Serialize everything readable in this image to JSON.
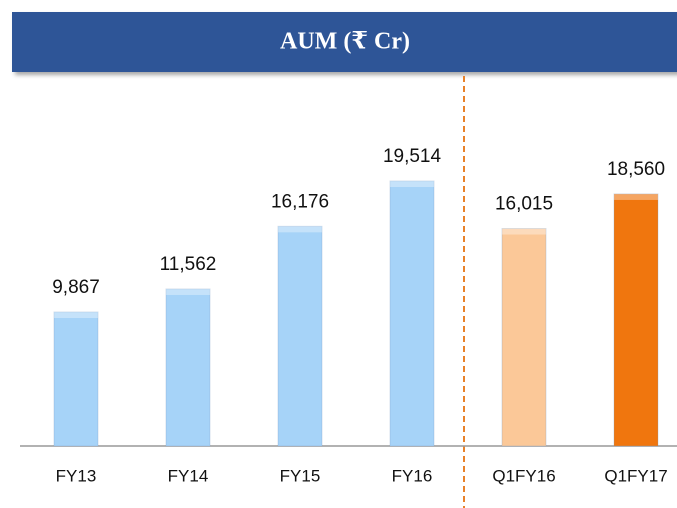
{
  "chart_data": {
    "type": "bar",
    "title": "AUM (₹ Cr)",
    "categories": [
      "FY13",
      "FY14",
      "FY15",
      "FY16",
      "Q1FY16",
      "Q1FY17"
    ],
    "values": [
      9867,
      11562,
      16176,
      19514,
      16015,
      18560
    ],
    "value_labels": [
      "9,867",
      "11,562",
      "16,176",
      "19,514",
      "16,015",
      "18,560"
    ],
    "colors": [
      "#a6d3f8",
      "#a6d3f8",
      "#a6d3f8",
      "#a6d3f8",
      "#fbc898",
      "#f0760e"
    ]
  }
}
